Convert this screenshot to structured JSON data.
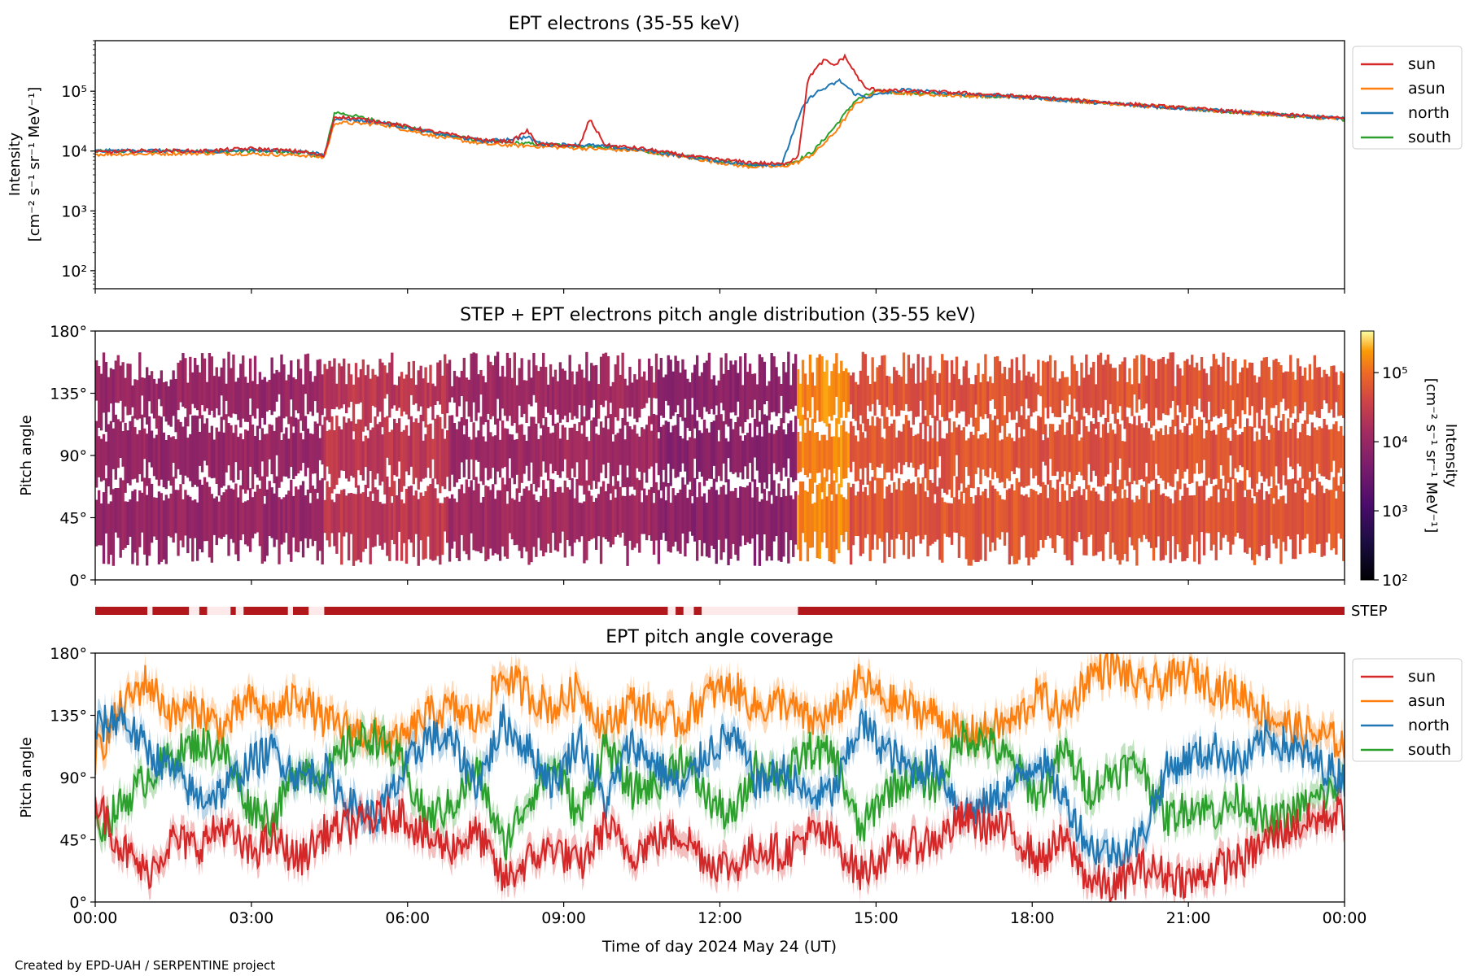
{
  "footer": {
    "credit": "Created by EPD-UAH / SERPENTINE project"
  },
  "colors": {
    "sun": "#d62728",
    "asun": "#ff7f0e",
    "north": "#1f77b4",
    "south": "#2ca02c",
    "step_bar": "#b2181b",
    "step_gap": "#fde9e9"
  },
  "time_axis": {
    "label": "Time of day 2024 May 24 (UT)",
    "ticks": [
      "00:00",
      "03:00",
      "06:00",
      "09:00",
      "12:00",
      "15:00",
      "18:00",
      "21:00",
      "00:00"
    ],
    "range_hours": [
      0,
      24
    ]
  },
  "chart_data": [
    {
      "type": "line",
      "title": "EPT electrons (35-55 keV)",
      "ylabel": [
        "Intensity",
        "[cm⁻² s⁻¹ sr⁻¹ MeV⁻¹]"
      ],
      "yscale": "log",
      "ylim": [
        50,
        700000
      ],
      "yticks": [
        {
          "value": 100,
          "label": "10²"
        },
        {
          "value": 1000,
          "label": "10³"
        },
        {
          "value": 10000,
          "label": "10⁴"
        },
        {
          "value": 100000,
          "label": "10⁵"
        }
      ],
      "legend": "outside-right",
      "series": [
        {
          "name": "sun",
          "color": "#d62728",
          "points": [
            [
              0,
              9500
            ],
            [
              1,
              10200
            ],
            [
              2,
              10000
            ],
            [
              3,
              11000
            ],
            [
              4,
              9800
            ],
            [
              4.4,
              8200
            ],
            [
              4.6,
              38000
            ],
            [
              5.5,
              31000
            ],
            [
              6.5,
              21000
            ],
            [
              7.5,
              15000
            ],
            [
              8,
              14500
            ],
            [
              8.3,
              22000
            ],
            [
              8.5,
              13000
            ],
            [
              9,
              12500
            ],
            [
              9.3,
              12000
            ],
            [
              9.5,
              34000
            ],
            [
              9.8,
              12500
            ],
            [
              10.5,
              11000
            ],
            [
              11.5,
              8000
            ],
            [
              12.5,
              6500
            ],
            [
              13.2,
              6000
            ],
            [
              13.5,
              8000
            ],
            [
              13.7,
              170000
            ],
            [
              14.0,
              330000
            ],
            [
              14.2,
              270000
            ],
            [
              14.4,
              380000
            ],
            [
              14.6,
              200000
            ],
            [
              14.8,
              110000
            ],
            [
              15.5,
              100000
            ],
            [
              16.5,
              95000
            ],
            [
              18,
              80000
            ],
            [
              20,
              60000
            ],
            [
              22,
              45000
            ],
            [
              24,
              35000
            ]
          ]
        },
        {
          "name": "asun",
          "color": "#ff7f0e",
          "points": [
            [
              0,
              8800
            ],
            [
              1,
              9000
            ],
            [
              2,
              9200
            ],
            [
              3,
              9000
            ],
            [
              4,
              8500
            ],
            [
              4.4,
              7800
            ],
            [
              4.6,
              30000
            ],
            [
              5.5,
              28000
            ],
            [
              6.5,
              18000
            ],
            [
              7.5,
              13000
            ],
            [
              8.5,
              12000
            ],
            [
              9.5,
              11000
            ],
            [
              10.5,
              10000
            ],
            [
              11.5,
              7500
            ],
            [
              12.5,
              5500
            ],
            [
              13.2,
              5500
            ],
            [
              13.5,
              6500
            ],
            [
              13.8,
              9000
            ],
            [
              14.2,
              20000
            ],
            [
              14.6,
              60000
            ],
            [
              15,
              100000
            ],
            [
              16,
              88000
            ],
            [
              18,
              78000
            ],
            [
              20,
              58000
            ],
            [
              22,
              44000
            ],
            [
              24,
              34000
            ]
          ]
        },
        {
          "name": "north",
          "color": "#1f77b4",
          "points": [
            [
              0,
              10000
            ],
            [
              1,
              10200
            ],
            [
              2,
              9800
            ],
            [
              3,
              10500
            ],
            [
              4,
              9800
            ],
            [
              4.4,
              8500
            ],
            [
              4.6,
              36000
            ],
            [
              5.5,
              30000
            ],
            [
              6.5,
              20000
            ],
            [
              7.5,
              14500
            ],
            [
              8.3,
              17000
            ],
            [
              8.6,
              13000
            ],
            [
              9.5,
              12500
            ],
            [
              10.5,
              10500
            ],
            [
              11.5,
              7800
            ],
            [
              12.5,
              6000
            ],
            [
              13.2,
              6000
            ],
            [
              13.4,
              20000
            ],
            [
              13.6,
              55000
            ],
            [
              13.8,
              90000
            ],
            [
              14.0,
              110000
            ],
            [
              14.3,
              150000
            ],
            [
              14.6,
              90000
            ],
            [
              14.8,
              80000
            ],
            [
              15.5,
              105000
            ],
            [
              16.5,
              92000
            ],
            [
              18,
              78000
            ],
            [
              20,
              58000
            ],
            [
              22,
              45000
            ],
            [
              24,
              35000
            ]
          ]
        },
        {
          "name": "south",
          "color": "#2ca02c",
          "points": [
            [
              0,
              9800
            ],
            [
              1,
              10000
            ],
            [
              2,
              9800
            ],
            [
              3,
              10000
            ],
            [
              4,
              9500
            ],
            [
              4.4,
              8000
            ],
            [
              4.6,
              45000
            ],
            [
              5.5,
              31000
            ],
            [
              6.5,
              20000
            ],
            [
              7.5,
              14500
            ],
            [
              8.5,
              13000
            ],
            [
              9.5,
              12000
            ],
            [
              10.5,
              10200
            ],
            [
              11.5,
              7800
            ],
            [
              12.5,
              6000
            ],
            [
              13.2,
              5800
            ],
            [
              13.5,
              7000
            ],
            [
              13.8,
              10000
            ],
            [
              14.2,
              25000
            ],
            [
              14.6,
              70000
            ],
            [
              15,
              100000
            ],
            [
              16,
              90000
            ],
            [
              18,
              79000
            ],
            [
              20,
              58000
            ],
            [
              22,
              44000
            ],
            [
              24,
              34000
            ]
          ]
        }
      ]
    },
    {
      "type": "heatmap",
      "title": "STEP + EPT electrons pitch angle distribution (35-55 keV)",
      "ylabel": "Pitch angle",
      "yticks": [
        "0°",
        "45°",
        "90°",
        "135°",
        "180°"
      ],
      "ylim": [
        0,
        180
      ],
      "colorbar": {
        "label": [
          "Intensity",
          "[cm⁻² s⁻¹ sr⁻¹ MeV⁻¹]"
        ],
        "scale": "log",
        "range": [
          100,
          400000
        ],
        "ticks": [
          {
            "value": 100,
            "label": "10²"
          },
          {
            "value": 1000,
            "label": "10³"
          },
          {
            "value": 10000,
            "label": "10⁴"
          },
          {
            "value": 100000,
            "label": "10⁵"
          }
        ],
        "colormap": "inferno"
      },
      "segments": [
        {
          "start": 0,
          "end": 4.4,
          "intensity": 9500
        },
        {
          "start": 4.4,
          "end": 6.8,
          "intensity": 25000
        },
        {
          "start": 6.8,
          "end": 10.8,
          "intensity": 12000
        },
        {
          "start": 10.8,
          "end": 13.5,
          "intensity": 7000
        },
        {
          "start": 13.5,
          "end": 14.5,
          "intensity": 150000
        },
        {
          "start": 14.5,
          "end": 24,
          "intensity": 60000
        }
      ]
    },
    {
      "type": "bar",
      "label": "STEP",
      "coverage": [
        [
          0,
          1.0
        ],
        [
          1.1,
          1.8
        ],
        [
          2.0,
          2.15
        ],
        [
          2.6,
          2.7
        ],
        [
          2.85,
          3.7
        ],
        [
          3.8,
          4.1
        ],
        [
          4.4,
          11.0
        ],
        [
          11.15,
          11.3
        ],
        [
          11.5,
          11.65
        ],
        [
          13.5,
          24
        ]
      ]
    },
    {
      "type": "line",
      "title": "EPT pitch angle coverage",
      "ylabel": "Pitch angle",
      "yticks": [
        "0°",
        "45°",
        "90°",
        "135°",
        "180°"
      ],
      "ylim": [
        0,
        180
      ],
      "legend": "outside-right",
      "series": [
        {
          "name": "sun",
          "color": "#d62728",
          "values": [
            75,
            40,
            20,
            45,
            40,
            55,
            35,
            45,
            30,
            50,
            55,
            60,
            65,
            45,
            40,
            50,
            15,
            30,
            40,
            25,
            55,
            35,
            45,
            50,
            30,
            25,
            40,
            35,
            50,
            45,
            20,
            35,
            40,
            45,
            60,
            55,
            50,
            30,
            45,
            15,
            10,
            25,
            20,
            15,
            25,
            30,
            45,
            55,
            60,
            65
          ]
        },
        {
          "name": "asun",
          "color": "#ff7f0e",
          "values": [
            105,
            140,
            160,
            135,
            140,
            125,
            145,
            135,
            150,
            130,
            125,
            120,
            115,
            135,
            140,
            130,
            165,
            150,
            140,
            155,
            125,
            145,
            135,
            130,
            150,
            155,
            140,
            145,
            130,
            135,
            160,
            145,
            140,
            135,
            120,
            125,
            130,
            150,
            135,
            165,
            170,
            155,
            160,
            165,
            155,
            150,
            135,
            125,
            120,
            115
          ]
        },
        {
          "name": "north",
          "color": "#1f77b4",
          "values": [
            125,
            135,
            110,
            95,
            75,
            80,
            100,
            110,
            90,
            95,
            70,
            60,
            90,
            120,
            115,
            85,
            130,
            110,
            85,
            120,
            70,
            115,
            100,
            80,
            110,
            120,
            85,
            95,
            75,
            80,
            130,
            110,
            95,
            100,
            65,
            70,
            85,
            105,
            75,
            40,
            35,
            45,
            95,
            105,
            110,
            100,
            120,
            110,
            100,
            90
          ]
        },
        {
          "name": "south",
          "color": "#2ca02c",
          "values": [
            50,
            70,
            90,
            105,
            115,
            110,
            70,
            60,
            100,
            90,
            115,
            120,
            100,
            60,
            70,
            95,
            40,
            75,
            100,
            60,
            115,
            80,
            85,
            105,
            75,
            60,
            100,
            90,
            110,
            105,
            50,
            80,
            90,
            85,
            120,
            115,
            100,
            75,
            110,
            80,
            95,
            100,
            60,
            70,
            65,
            75,
            55,
            65,
            75,
            85
          ]
        }
      ]
    }
  ]
}
